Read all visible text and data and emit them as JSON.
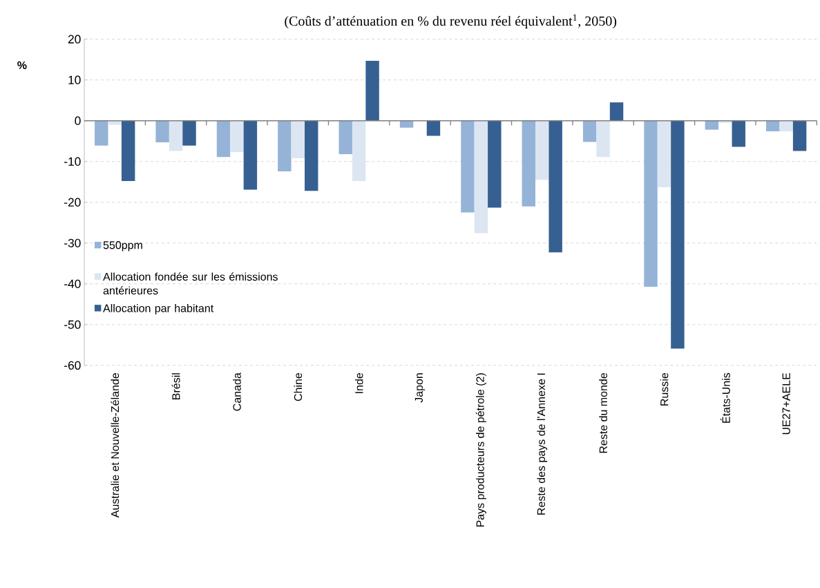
{
  "chart_data": {
    "type": "bar",
    "title": "(Coûts d’atténuation en % du revenu réel équivalent$^{1}$, 2050)",
    "ylabel": "%",
    "categories": [
      "Australie et Nouvelle-Zélande",
      "Brésil",
      "Canada",
      "Chine",
      "Inde",
      "Japon",
      "Pays producteurs de pétrole (2)",
      "Reste des pays de l'Annexe I",
      "Reste du monde",
      "Russie",
      "États-Unis",
      "UE27+AELE"
    ],
    "series": [
      {
        "name": "550ppm",
        "color": "#95b3d7",
        "values": [
          -6.1,
          -5.3,
          -8.9,
          -12.4,
          -8.2,
          -1.7,
          -22.5,
          -21.0,
          -5.2,
          -40.7,
          -2.2,
          -2.6
        ]
      },
      {
        "name": "Allocation fondée sur les émissions antérieures",
        "color": "#dce6f2",
        "values": [
          -1.0,
          -7.4,
          -7.7,
          -9.2,
          -14.8,
          null,
          -27.6,
          -14.5,
          -8.9,
          -16.3,
          -0.5,
          -2.6
        ]
      },
      {
        "name": "Allocation par habitant",
        "color": "#366092",
        "values": [
          -14.8,
          -6.1,
          -16.9,
          -17.2,
          14.7,
          -3.7,
          -21.3,
          -32.3,
          4.5,
          -55.9,
          -6.4,
          -7.4
        ]
      }
    ],
    "ylim": [
      -60,
      20
    ],
    "yticks": [
      -60,
      -50,
      -40,
      -30,
      -20,
      -10,
      0,
      10,
      20
    ],
    "grid": "y",
    "legend": "left"
  }
}
